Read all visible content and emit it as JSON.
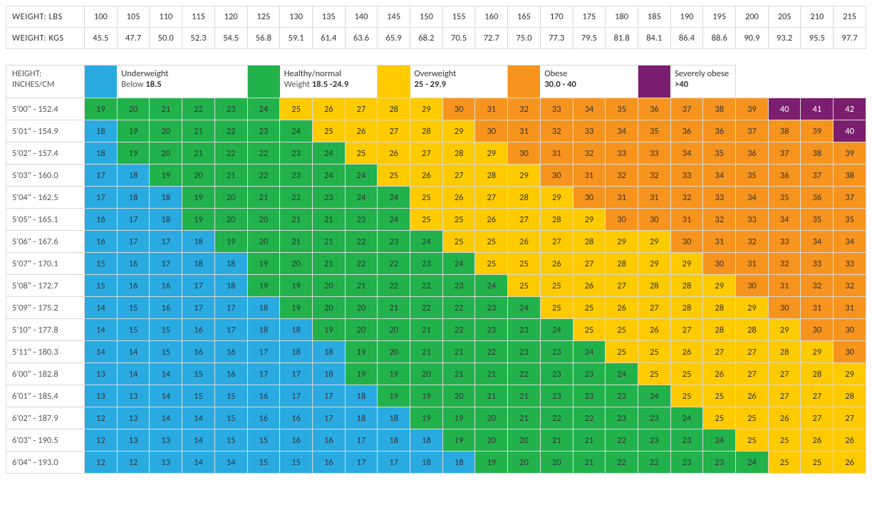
{
  "colors": {
    "underweight": "#29abe2",
    "healthy": "#22b24c",
    "overweight": "#fecb00",
    "obese": "#f7941d",
    "severe": "#7c1e6f",
    "border": "#d9d9d9",
    "background": "#ffffff",
    "cell_text": "#333333",
    "severe_text": "#ffffff"
  },
  "fonts": {
    "body_size_pt": 10,
    "header_letter_spacing": 0.5
  },
  "weight_table": {
    "lbs_label": "WEIGHT: LBS",
    "kgs_label": "WEIGHT: KGS",
    "lbs": [
      "100",
      "105",
      "110",
      "115",
      "120",
      "125",
      "130",
      "135",
      "140",
      "145",
      "150",
      "155",
      "160",
      "165",
      "170",
      "175",
      "180",
      "185",
      "190",
      "195",
      "200",
      "205",
      "210",
      "215"
    ],
    "kgs": [
      "45.5",
      "47.7",
      "50.0",
      "52.3",
      "54.5",
      "56.8",
      "59.1",
      "61.4",
      "63.6",
      "65.9",
      "68.2",
      "70.5",
      "72.7",
      "75.0",
      "77.3",
      "79.5",
      "81.8",
      "84.1",
      "86.4",
      "88.6",
      "90.9",
      "93.2",
      "95.5",
      "97.7"
    ]
  },
  "legend": {
    "height_header_line1": "HEIGHT:",
    "height_header_line2": "INCHES/CM",
    "items": [
      {
        "key": "underweight",
        "title": "Underweight",
        "sub_prefix": "Below ",
        "sub_bold": "18.5",
        "sub_suffix": "",
        "span": 5
      },
      {
        "key": "healthy",
        "title": "Healthy/normal",
        "sub_prefix": "Weight ",
        "sub_bold": "18.5 -24.9",
        "sub_suffix": "",
        "span": 4
      },
      {
        "key": "overweight",
        "title": "Overweight",
        "sub_prefix": "",
        "sub_bold": "25 - 29.9",
        "sub_suffix": "",
        "span": 4
      },
      {
        "key": "obese",
        "title": "Obese",
        "sub_prefix": "",
        "sub_bold": "30.0 - 40",
        "sub_suffix": "",
        "span": 4
      },
      {
        "key": "severe",
        "title": "Severely obese",
        "sub_prefix": "",
        "sub_bold": ">40",
        "sub_suffix": "",
        "span": 3
      }
    ]
  },
  "thresholds": {
    "healthy_min": 18.5,
    "overweight_min": 25,
    "obese_min": 30,
    "severe_min": 40
  },
  "heights": [
    "5'00\" - 152.4",
    "5'01\" - 154.9",
    "5'02\" - 157.4",
    "5'03\" - 160.0",
    "5'04\" - 162.5",
    "5'05\" - 165.1",
    "5'06\" - 167.6",
    "5'07\" - 170.1",
    "5'08\" - 172.7",
    "5'09\" - 175.2",
    "5'10\" - 177.8",
    "5'11\" - 180.3",
    "6'00\" - 182.8",
    "6'01\" - 185.4",
    "6'02\" - 187.9",
    "6'03\" - 190.5",
    "6'04\" - 193.0"
  ],
  "bmi_grid": [
    [
      19,
      20,
      21,
      22,
      23,
      24,
      25,
      26,
      27,
      28,
      29,
      30,
      31,
      32,
      33,
      34,
      35,
      36,
      37,
      38,
      39,
      40,
      41,
      42
    ],
    [
      18,
      19,
      20,
      21,
      22,
      23,
      24,
      25,
      26,
      27,
      28,
      29,
      30,
      31,
      32,
      33,
      34,
      35,
      36,
      36,
      37,
      38,
      39,
      40
    ],
    [
      18,
      19,
      20,
      21,
      22,
      22,
      23,
      24,
      25,
      26,
      27,
      28,
      29,
      30,
      31,
      32,
      33,
      33,
      34,
      35,
      36,
      37,
      38,
      39
    ],
    [
      17,
      18,
      19,
      20,
      21,
      22,
      23,
      24,
      24,
      25,
      26,
      27,
      28,
      29,
      30,
      31,
      32,
      32,
      33,
      34,
      35,
      36,
      37,
      38
    ],
    [
      17,
      18,
      18,
      19,
      20,
      21,
      22,
      23,
      24,
      24,
      25,
      26,
      27,
      28,
      29,
      30,
      31,
      31,
      32,
      33,
      34,
      35,
      36,
      37
    ],
    [
      16,
      17,
      18,
      19,
      20,
      20,
      21,
      21,
      23,
      24,
      25,
      25,
      26,
      27,
      28,
      29,
      30,
      30,
      31,
      32,
      33,
      34,
      35,
      35
    ],
    [
      16,
      17,
      17,
      18,
      19,
      20,
      21,
      21,
      22,
      23,
      24,
      25,
      25,
      26,
      27,
      28,
      29,
      29,
      30,
      31,
      32,
      33,
      34,
      34
    ],
    [
      15,
      16,
      17,
      18,
      18,
      19,
      20,
      21,
      22,
      22,
      23,
      24,
      25,
      25,
      26,
      27,
      28,
      29,
      29,
      30,
      31,
      32,
      33,
      33
    ],
    [
      15,
      16,
      16,
      17,
      18,
      19,
      19,
      20,
      21,
      22,
      22,
      23,
      24,
      25,
      25,
      26,
      27,
      28,
      28,
      29,
      30,
      31,
      32,
      32
    ],
    [
      14,
      15,
      16,
      17,
      17,
      18,
      19,
      20,
      20,
      21,
      22,
      22,
      23,
      24,
      25,
      25,
      26,
      27,
      28,
      28,
      29,
      30,
      31,
      31
    ],
    [
      14,
      15,
      15,
      16,
      17,
      18,
      18,
      19,
      20,
      20,
      21,
      22,
      23,
      23,
      24,
      25,
      25,
      26,
      27,
      28,
      28,
      29,
      30,
      30
    ],
    [
      14,
      14,
      15,
      16,
      16,
      17,
      18,
      18,
      19,
      20,
      21,
      21,
      22,
      23,
      23,
      24,
      25,
      25,
      26,
      27,
      27,
      28,
      29,
      30
    ],
    [
      13,
      14,
      14,
      15,
      16,
      17,
      17,
      18,
      19,
      19,
      20,
      21,
      21,
      22,
      23,
      23,
      24,
      25,
      25,
      26,
      27,
      27,
      28,
      29
    ],
    [
      13,
      13,
      14,
      15,
      15,
      16,
      17,
      17,
      18,
      19,
      19,
      20,
      21,
      21,
      23,
      23,
      23,
      24,
      25,
      25,
      26,
      27,
      27,
      28
    ],
    [
      12,
      13,
      14,
      14,
      15,
      16,
      16,
      17,
      18,
      18,
      19,
      19,
      20,
      21,
      22,
      22,
      23,
      23,
      24,
      25,
      25,
      26,
      27,
      27
    ],
    [
      12,
      13,
      13,
      14,
      15,
      15,
      16,
      16,
      17,
      18,
      18,
      19,
      20,
      20,
      21,
      21,
      22,
      23,
      23,
      24,
      25,
      25,
      26,
      26
    ],
    [
      12,
      12,
      13,
      14,
      14,
      15,
      15,
      16,
      17,
      17,
      18,
      18,
      19,
      20,
      20,
      21,
      22,
      22,
      23,
      23,
      24,
      25,
      25,
      26
    ]
  ],
  "grid_color_overrides": {
    "comment_": "row,col zero-indexed relative to bmi_grid; forces a specific category color where the screenshot color does not match the standard thresholds",
    "5": {
      "2": "underweight"
    }
  }
}
